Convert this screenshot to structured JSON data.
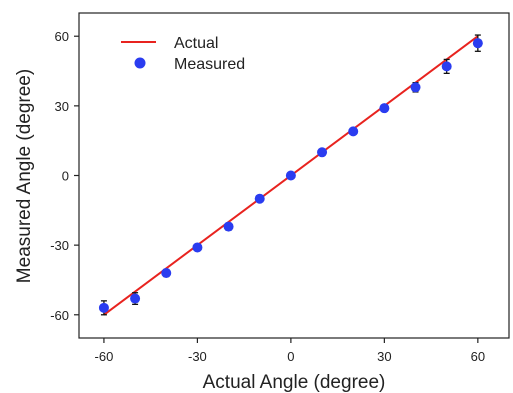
{
  "chart_data": {
    "type": "scatter",
    "xlabel": "Actual Angle (degree)",
    "ylabel": "Measured Angle (degree)",
    "xlim": [
      -68,
      70
    ],
    "ylim": [
      -70,
      70
    ],
    "x_ticks": [
      -60,
      -30,
      0,
      30,
      60
    ],
    "y_ticks": [
      -60,
      -30,
      0,
      30,
      60
    ],
    "x_tick_labels": [
      "-60",
      "-30",
      "0",
      "30",
      "60"
    ],
    "y_tick_labels": [
      "-60",
      "-30",
      "0",
      "30",
      "60"
    ],
    "grid": false,
    "legend_position": "top-left",
    "series": [
      {
        "name": "Actual",
        "kind": "line",
        "color": "#e8231f",
        "x": [
          -60,
          60
        ],
        "y": [
          -60,
          60
        ]
      },
      {
        "name": "Measured",
        "kind": "scatter",
        "color": "#2a3cf0",
        "x": [
          -60,
          -50,
          -40,
          -30,
          -20,
          -10,
          0,
          10,
          20,
          30,
          40,
          50,
          60
        ],
        "y": [
          -57,
          -53,
          -42,
          -31,
          -22,
          -10,
          0,
          10,
          19,
          29,
          38,
          47,
          57
        ],
        "error": [
          3,
          2.5,
          1.5,
          1.2,
          1.5,
          1,
          0.8,
          1,
          1,
          1.2,
          2,
          3,
          3.5
        ]
      }
    ]
  }
}
